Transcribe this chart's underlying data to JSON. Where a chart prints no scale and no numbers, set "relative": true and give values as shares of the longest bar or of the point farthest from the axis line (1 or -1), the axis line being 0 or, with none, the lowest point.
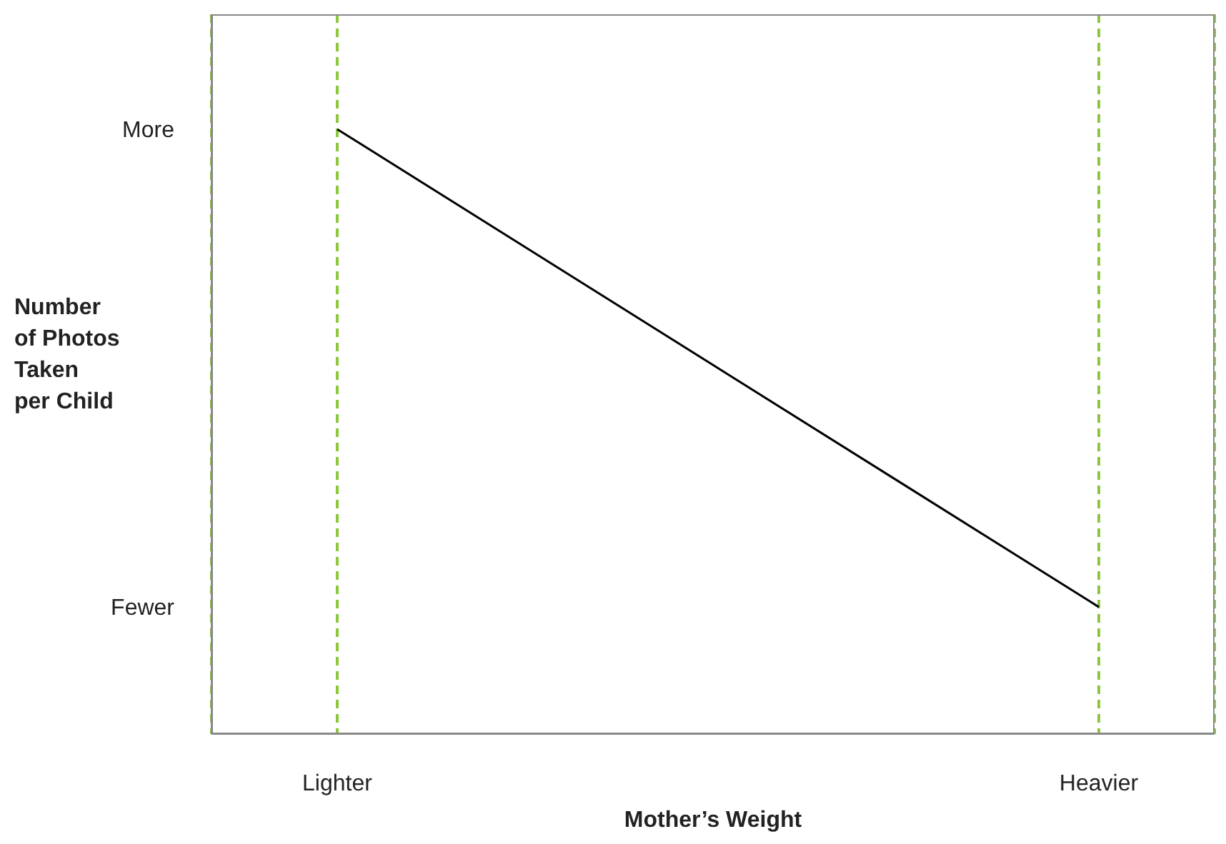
{
  "chart_data": {
    "type": "line",
    "xlabel": "Mother’s Weight",
    "ylabel": "Number of Photos Taken per Child",
    "categories": [
      "Lighter",
      "Heavier"
    ],
    "series": [
      {
        "color": "#000000",
        "values": [
          1,
          0.21
        ]
      }
    ],
    "relative": true,
    "annotations": [
      "More",
      "Fewer"
    ],
    "grid": "x",
    "marker": "none"
  }
}
